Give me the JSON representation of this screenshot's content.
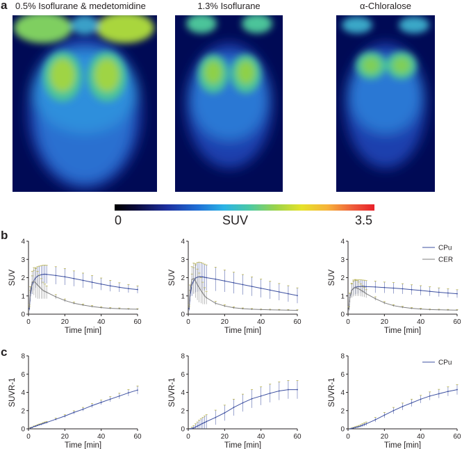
{
  "panel_a": {
    "letter": "a",
    "titles": [
      "0.5% Isoflurane & medetomidine",
      "1.3% Isoflurane",
      "α-Chloralose"
    ],
    "colorbar": {
      "min_label": "0",
      "title": "SUV",
      "max_label": "3.5"
    }
  },
  "panel_b": {
    "letter": "b"
  },
  "panel_c": {
    "letter": "c"
  },
  "chart_data": [
    {
      "type": "line",
      "row": "b",
      "title": "0.5% Isoflurane & medetomidine",
      "xlabel": "Time [min]",
      "ylabel": "SUV",
      "xlim": [
        0,
        60
      ],
      "ylim": [
        0,
        4
      ],
      "xticks": [
        "0",
        "20",
        "40",
        "60"
      ],
      "yticks": [
        "0",
        "1",
        "2",
        "3",
        "4"
      ],
      "series": [
        {
          "name": "CPu",
          "color": "#3c4fa0",
          "x": [
            0.5,
            1,
            2,
            3,
            4,
            5,
            6,
            7,
            8,
            9,
            10,
            15,
            20,
            25,
            30,
            35,
            40,
            45,
            50,
            55,
            60
          ],
          "y": [
            0.3,
            1.0,
            1.6,
            1.85,
            2.0,
            2.08,
            2.13,
            2.16,
            2.18,
            2.19,
            2.18,
            2.12,
            2.05,
            1.95,
            1.85,
            1.75,
            1.65,
            1.55,
            1.47,
            1.4,
            1.35
          ],
          "err": [
            0.1,
            0.3,
            0.5,
            0.55,
            0.55,
            0.52,
            0.5,
            0.5,
            0.5,
            0.5,
            0.5,
            0.48,
            0.45,
            0.42,
            0.4,
            0.36,
            0.33,
            0.3,
            0.25,
            0.22,
            0.2
          ]
        },
        {
          "name": "CER",
          "color": "#7f7f7f",
          "x": [
            0.5,
            1,
            2,
            3,
            4,
            5,
            6,
            7,
            8,
            9,
            10,
            15,
            20,
            25,
            30,
            35,
            40,
            45,
            50,
            55,
            60
          ],
          "y": [
            0.4,
            1.2,
            1.75,
            1.8,
            1.7,
            1.6,
            1.5,
            1.4,
            1.3,
            1.25,
            1.2,
            0.95,
            0.75,
            0.6,
            0.5,
            0.42,
            0.36,
            0.32,
            0.3,
            0.28,
            0.27
          ],
          "err": [
            0.1,
            0.3,
            0.6,
            0.75,
            0.8,
            0.75,
            0.65,
            0.55,
            0.45,
            0.4,
            0.35,
            0.12,
            0.08,
            0.06,
            0.05,
            0.05,
            0.04,
            0.04,
            0.04,
            0.03,
            0.03
          ]
        }
      ]
    },
    {
      "type": "line",
      "row": "b",
      "title": "1.3% Isoflurane",
      "xlabel": "Time [min]",
      "ylabel": "SUV",
      "xlim": [
        0,
        60
      ],
      "ylim": [
        0,
        4
      ],
      "xticks": [
        "0",
        "20",
        "40",
        "60"
      ],
      "yticks": [
        "0",
        "1",
        "2",
        "3",
        "4"
      ],
      "series": [
        {
          "name": "CPu",
          "color": "#3c4fa0",
          "x": [
            0.5,
            1,
            2,
            3,
            4,
            5,
            6,
            7,
            8,
            9,
            10,
            15,
            20,
            25,
            30,
            35,
            40,
            45,
            50,
            55,
            60
          ],
          "y": [
            0.3,
            1.0,
            1.6,
            1.85,
            1.98,
            2.03,
            2.05,
            2.05,
            2.04,
            2.02,
            2.0,
            1.92,
            1.82,
            1.72,
            1.62,
            1.52,
            1.42,
            1.32,
            1.22,
            1.12,
            1.02
          ],
          "err": [
            0.1,
            0.3,
            0.6,
            0.7,
            0.78,
            0.8,
            0.8,
            0.78,
            0.75,
            0.72,
            0.7,
            0.65,
            0.6,
            0.58,
            0.55,
            0.52,
            0.5,
            0.48,
            0.46,
            0.44,
            0.42
          ]
        },
        {
          "name": "CER",
          "color": "#7f7f7f",
          "x": [
            0.5,
            1,
            2,
            3,
            4,
            5,
            6,
            7,
            8,
            9,
            10,
            15,
            20,
            25,
            30,
            35,
            40,
            45,
            50,
            55,
            60
          ],
          "y": [
            0.4,
            1.3,
            1.9,
            1.95,
            1.8,
            1.62,
            1.45,
            1.3,
            1.15,
            1.0,
            0.9,
            0.6,
            0.45,
            0.35,
            0.3,
            0.27,
            0.25,
            0.24,
            0.23,
            0.22,
            0.21
          ],
          "err": [
            0.1,
            0.3,
            0.7,
            0.85,
            0.9,
            0.85,
            0.8,
            0.7,
            0.6,
            0.45,
            0.35,
            0.1,
            0.06,
            0.05,
            0.04,
            0.04,
            0.03,
            0.03,
            0.03,
            0.03,
            0.03
          ]
        }
      ]
    },
    {
      "type": "line",
      "row": "b",
      "title": "α-Chloralose",
      "xlabel": "Time [min]",
      "ylabel": "SUV",
      "xlim": [
        0,
        60
      ],
      "ylim": [
        0,
        4
      ],
      "xticks": [
        "0",
        "20",
        "40",
        "60"
      ],
      "yticks": [
        "0",
        "1",
        "2",
        "3",
        "4"
      ],
      "legend": {
        "entries": [
          "CPu",
          "CER"
        ],
        "placement": "top-right"
      },
      "series": [
        {
          "name": "CPu",
          "color": "#3c4fa0",
          "x": [
            0.5,
            1,
            2,
            3,
            4,
            5,
            6,
            7,
            8,
            9,
            10,
            15,
            20,
            25,
            30,
            35,
            40,
            45,
            50,
            55,
            60
          ],
          "y": [
            0.3,
            0.9,
            1.3,
            1.42,
            1.48,
            1.5,
            1.51,
            1.52,
            1.52,
            1.52,
            1.51,
            1.49,
            1.46,
            1.43,
            1.39,
            1.34,
            1.3,
            1.25,
            1.2,
            1.16,
            1.12
          ],
          "err": [
            0.1,
            0.25,
            0.35,
            0.38,
            0.38,
            0.38,
            0.37,
            0.36,
            0.35,
            0.34,
            0.33,
            0.32,
            0.3,
            0.3,
            0.28,
            0.27,
            0.26,
            0.25,
            0.24,
            0.23,
            0.22
          ]
        },
        {
          "name": "CER",
          "color": "#7f7f7f",
          "x": [
            0.5,
            1,
            2,
            3,
            4,
            5,
            6,
            7,
            8,
            9,
            10,
            15,
            20,
            25,
            30,
            35,
            40,
            45,
            50,
            55,
            60
          ],
          "y": [
            0.3,
            0.9,
            1.3,
            1.42,
            1.45,
            1.42,
            1.38,
            1.32,
            1.26,
            1.2,
            1.12,
            0.85,
            0.62,
            0.47,
            0.38,
            0.32,
            0.28,
            0.25,
            0.24,
            0.23,
            0.22
          ],
          "err": [
            0.1,
            0.25,
            0.4,
            0.45,
            0.45,
            0.42,
            0.38,
            0.34,
            0.3,
            0.26,
            0.22,
            0.1,
            0.07,
            0.05,
            0.05,
            0.04,
            0.04,
            0.03,
            0.03,
            0.03,
            0.03
          ]
        }
      ]
    },
    {
      "type": "line",
      "row": "c",
      "title": "0.5% Isoflurane & medetomidine",
      "xlabel": "Time [min]",
      "ylabel": "SUVR-1",
      "xlim": [
        0,
        60
      ],
      "ylim": [
        0,
        8
      ],
      "xticks": [
        "0",
        "20",
        "40",
        "60"
      ],
      "yticks": [
        "0",
        "2",
        "4",
        "6",
        "8"
      ],
      "series": [
        {
          "name": "CPu",
          "color": "#3c4fa0",
          "x": [
            1,
            2,
            3,
            4,
            5,
            6,
            7,
            8,
            9,
            10,
            15,
            20,
            25,
            30,
            35,
            40,
            45,
            50,
            55,
            60
          ],
          "y": [
            0.1,
            0.15,
            0.25,
            0.3,
            0.38,
            0.45,
            0.5,
            0.58,
            0.65,
            0.7,
            1.05,
            1.4,
            1.8,
            2.15,
            2.55,
            2.9,
            3.25,
            3.6,
            3.95,
            4.25
          ],
          "err": [
            0.05,
            0.05,
            0.06,
            0.07,
            0.08,
            0.08,
            0.09,
            0.1,
            0.1,
            0.1,
            0.12,
            0.15,
            0.18,
            0.2,
            0.22,
            0.25,
            0.28,
            0.3,
            0.35,
            0.45
          ]
        }
      ]
    },
    {
      "type": "line",
      "row": "c",
      "title": "1.3% Isoflurane",
      "xlabel": "Time [min]",
      "ylabel": "SUVR-1",
      "xlim": [
        0,
        60
      ],
      "ylim": [
        0,
        8
      ],
      "xticks": [
        "0",
        "20",
        "40",
        "60"
      ],
      "yticks": [
        "0",
        "2",
        "4",
        "6",
        "8"
      ],
      "series": [
        {
          "name": "CPu",
          "color": "#3c4fa0",
          "x": [
            1,
            2,
            3,
            4,
            5,
            6,
            7,
            8,
            9,
            10,
            15,
            20,
            25,
            30,
            35,
            40,
            45,
            50,
            55,
            60
          ],
          "y": [
            0.0,
            0.05,
            0.1,
            0.2,
            0.3,
            0.4,
            0.5,
            0.6,
            0.7,
            0.8,
            1.25,
            1.75,
            2.35,
            2.85,
            3.3,
            3.6,
            3.9,
            4.15,
            4.3,
            4.3
          ],
          "err": [
            0.05,
            0.15,
            0.25,
            0.35,
            0.45,
            0.55,
            0.6,
            0.65,
            0.7,
            0.75,
            0.8,
            0.85,
            0.9,
            0.95,
            1.0,
            1.0,
            1.0,
            1.0,
            1.0,
            1.0
          ]
        }
      ]
    },
    {
      "type": "line",
      "row": "c",
      "title": "α-Chloralose",
      "xlabel": "Time [min]",
      "ylabel": "SUVR-1",
      "xlim": [
        0,
        60
      ],
      "ylim": [
        0,
        8
      ],
      "xticks": [
        "0",
        "20",
        "40",
        "60"
      ],
      "yticks": [
        "0",
        "2",
        "4",
        "6",
        "8"
      ],
      "legend": {
        "entries": [
          "CPu"
        ],
        "placement": "top-right"
      },
      "series": [
        {
          "name": "CPu",
          "color": "#3c4fa0",
          "x": [
            1,
            2,
            3,
            4,
            5,
            6,
            7,
            8,
            9,
            10,
            15,
            20,
            25,
            30,
            35,
            40,
            45,
            50,
            55,
            60
          ],
          "y": [
            0.0,
            0.05,
            0.1,
            0.15,
            0.2,
            0.25,
            0.32,
            0.4,
            0.48,
            0.55,
            1.0,
            1.5,
            2.0,
            2.45,
            2.85,
            3.25,
            3.6,
            3.85,
            4.1,
            4.3
          ],
          "err": [
            0.03,
            0.05,
            0.06,
            0.08,
            0.1,
            0.12,
            0.14,
            0.16,
            0.18,
            0.2,
            0.25,
            0.3,
            0.35,
            0.38,
            0.4,
            0.42,
            0.45,
            0.48,
            0.5,
            0.55
          ]
        }
      ]
    }
  ]
}
